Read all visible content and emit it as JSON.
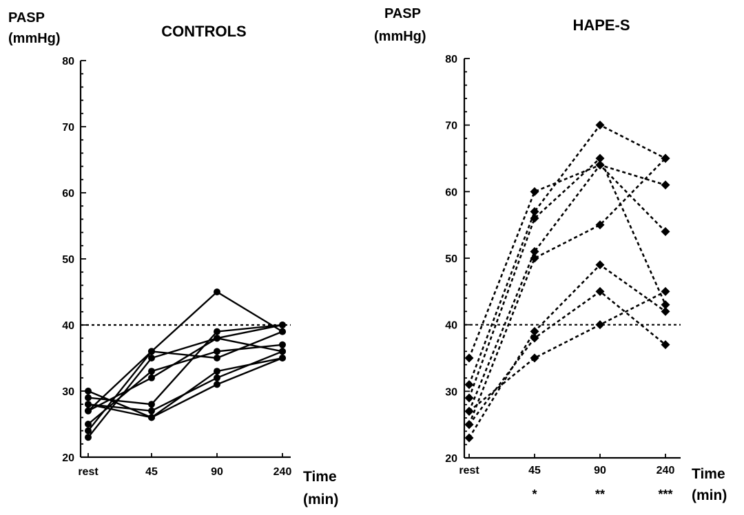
{
  "chart_data": [
    {
      "type": "line",
      "title": "CONTROLS",
      "ylabel_line1": "PASP",
      "ylabel_line2": "(mmHg)",
      "xlabel_line1": "Time",
      "xlabel_line2": "(min)",
      "categories": [
        "rest",
        "45",
        "90",
        "240"
      ],
      "ylim": [
        20,
        80
      ],
      "yticks": [
        "20",
        "30",
        "40",
        "50",
        "60",
        "70",
        "80"
      ],
      "reference_line": 40,
      "line_style": "solid",
      "marker": "circle",
      "color": "#000000",
      "significance": [
        "",
        "",
        "",
        ""
      ],
      "series": [
        {
          "values": [
            23,
            35,
            38,
            40
          ]
        },
        {
          "values": [
            24,
            36,
            45,
            39
          ]
        },
        {
          "values": [
            25,
            33,
            36,
            37
          ]
        },
        {
          "values": [
            27,
            36,
            35,
            39
          ]
        },
        {
          "values": [
            28,
            27,
            32,
            36
          ]
        },
        {
          "values": [
            29,
            28,
            39,
            40
          ]
        },
        {
          "values": [
            30,
            26,
            31,
            35
          ]
        },
        {
          "values": [
            27,
            32,
            38,
            36
          ]
        },
        {
          "values": [
            28,
            26,
            33,
            35
          ]
        }
      ]
    },
    {
      "type": "line",
      "title": "HAPE-S",
      "ylabel_line1": "PASP",
      "ylabel_line2": "(mmHg)",
      "xlabel_line1": "Time",
      "xlabel_line2": "(min)",
      "categories": [
        "rest",
        "45",
        "90",
        "240"
      ],
      "ylim": [
        20,
        80
      ],
      "yticks": [
        "20",
        "30",
        "40",
        "50",
        "60",
        "70",
        "80"
      ],
      "reference_line": 40,
      "line_style": "dashed",
      "marker": "diamond",
      "color": "#000000",
      "significance": [
        "",
        "*",
        "**",
        "***"
      ],
      "series": [
        {
          "values": [
            35,
            60,
            64,
            61
          ]
        },
        {
          "values": [
            31,
            57,
            70,
            65
          ]
        },
        {
          "values": [
            29,
            56,
            65,
            43
          ]
        },
        {
          "values": [
            27,
            51,
            64,
            54
          ]
        },
        {
          "values": [
            25,
            50,
            55,
            65
          ]
        },
        {
          "values": [
            23,
            39,
            49,
            42
          ]
        },
        {
          "values": [
            25,
            38,
            45,
            37
          ]
        },
        {
          "values": [
            27,
            35,
            40,
            45
          ]
        }
      ]
    }
  ]
}
